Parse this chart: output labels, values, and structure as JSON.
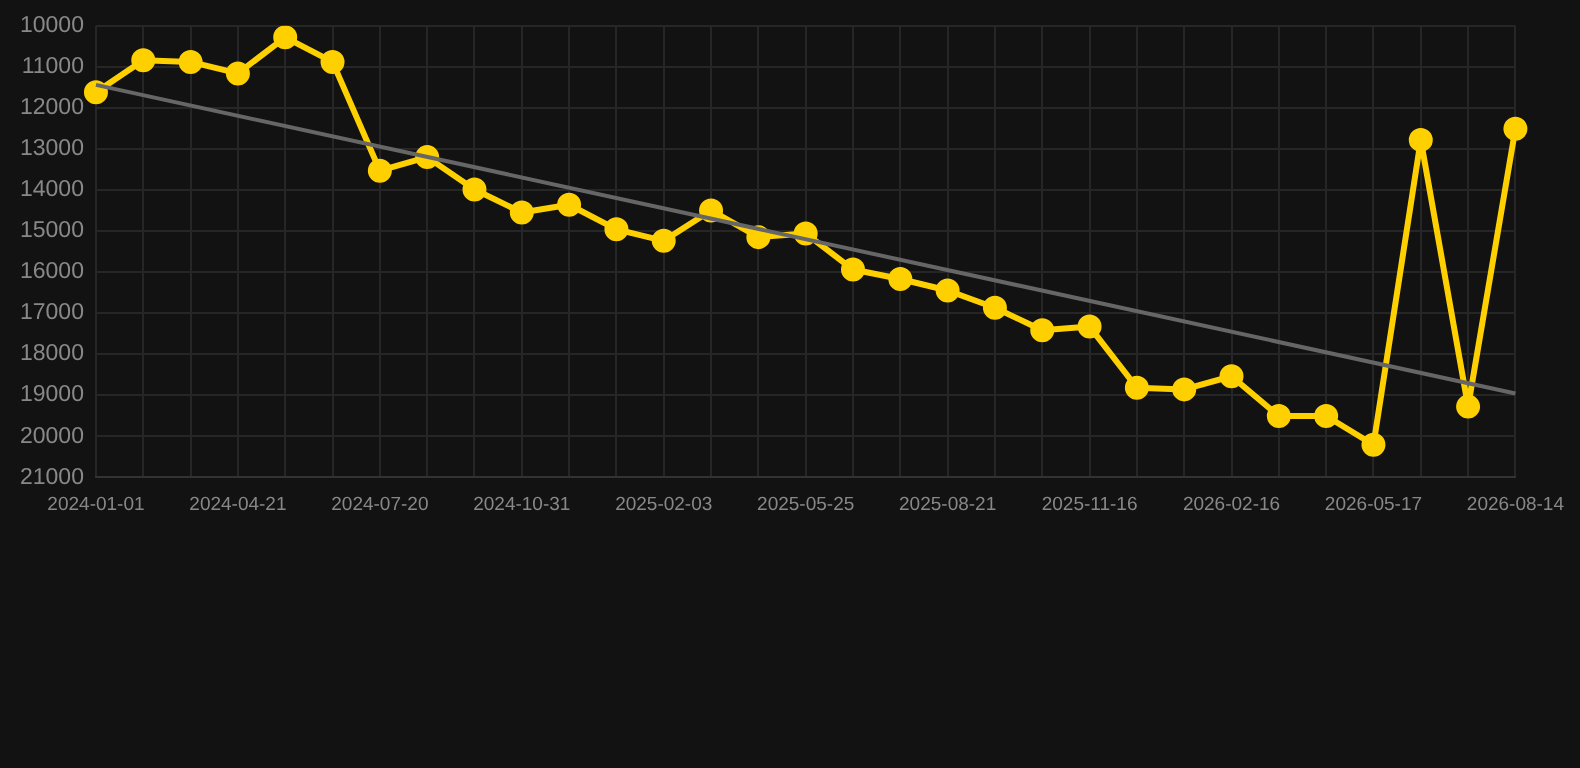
{
  "chart_data": {
    "type": "line",
    "categories": [
      "2024-01-01",
      null,
      null,
      "2024-04-21",
      null,
      null,
      "2024-07-20",
      null,
      null,
      "2024-10-31",
      null,
      null,
      "2025-02-03",
      null,
      null,
      "2025-05-25",
      null,
      null,
      "2025-08-21",
      null,
      null,
      "2025-11-16",
      null,
      null,
      "2026-02-16",
      null,
      null,
      "2026-05-17",
      null,
      null,
      "2026-08-14"
    ],
    "series": [
      {
        "color": "#ffd000",
        "marker": "circle",
        "values": [
          11620,
          10840,
          10880,
          11160,
          10280,
          10880,
          13530,
          13200,
          13990,
          14550,
          14360,
          14960,
          15240,
          14500,
          15150,
          15060,
          15940,
          16170,
          16450,
          16870,
          17420,
          17330,
          18820,
          18860,
          18540,
          19510,
          19510,
          20210,
          12780,
          19280,
          12510
        ]
      },
      {
        "type": "line",
        "color": "#666666",
        "marker": "none",
        "line_style": "solid",
        "values": [
          11440,
          null,
          null,
          null,
          null,
          null,
          null,
          null,
          null,
          null,
          null,
          null,
          null,
          null,
          null,
          null,
          null,
          null,
          null,
          null,
          null,
          null,
          null,
          null,
          null,
          null,
          null,
          null,
          null,
          null,
          18960
        ]
      }
    ],
    "ylim": [
      21000,
      10000
    ],
    "yticks": [
      10000,
      11000,
      12000,
      13000,
      14000,
      15000,
      16000,
      17000,
      18000,
      19000,
      20000,
      21000
    ],
    "grid": true,
    "legend": false
  }
}
